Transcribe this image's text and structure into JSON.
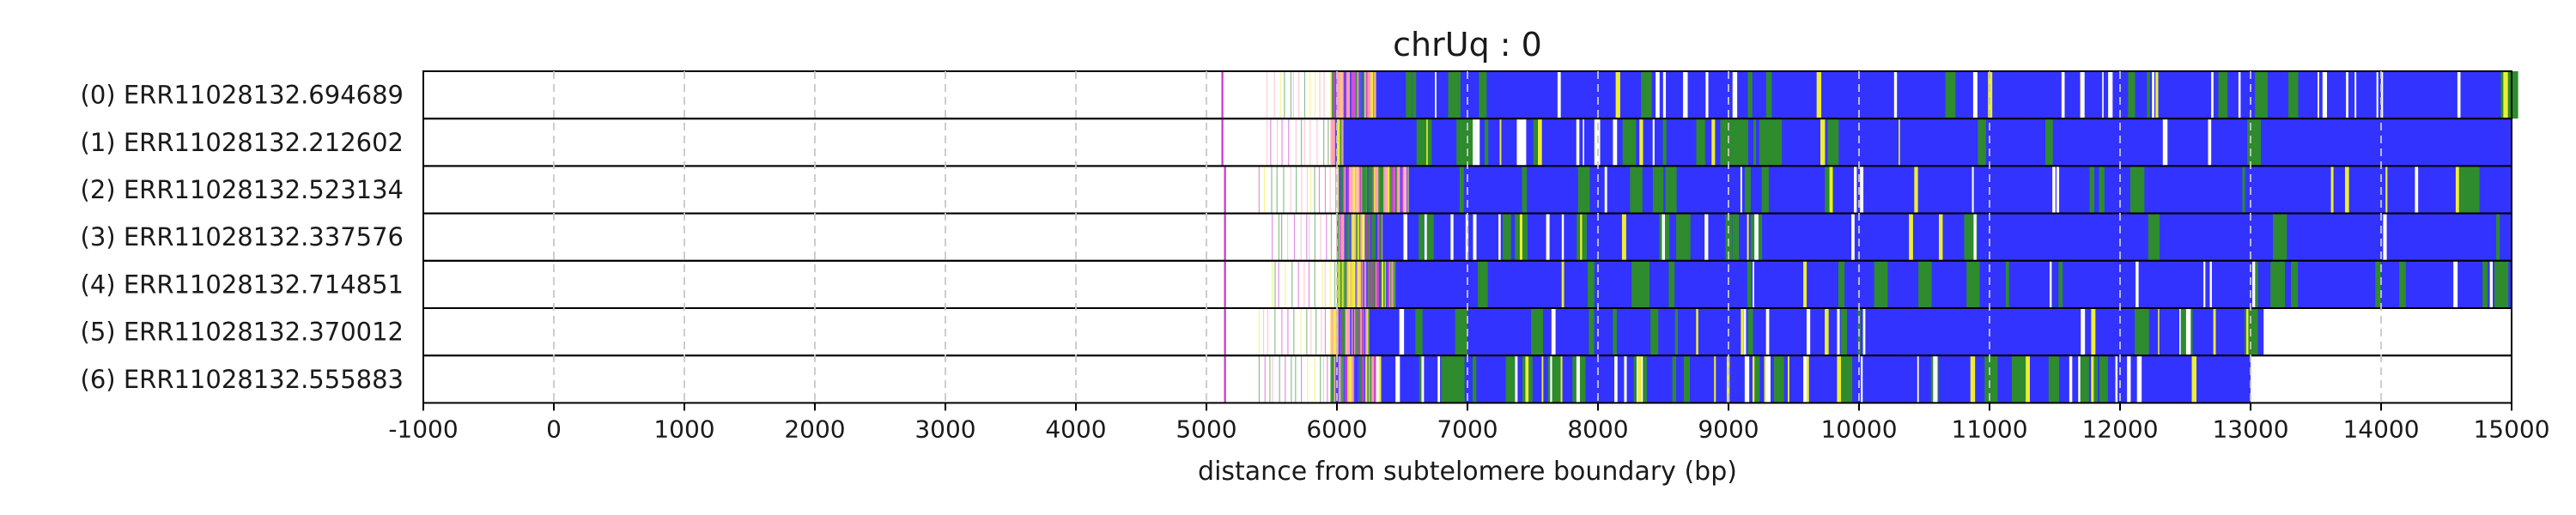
{
  "chart_data": {
    "type": "heatmap",
    "title": "chrUq : 0",
    "xlabel": "distance from subtelomere boundary (bp)",
    "ylabel": "",
    "xlim": [
      -1000,
      15000
    ],
    "xticks": [
      -1000,
      0,
      1000,
      2000,
      3000,
      4000,
      5000,
      6000,
      7000,
      8000,
      9000,
      10000,
      11000,
      12000,
      13000,
      14000,
      15000
    ],
    "xtick_labels": [
      "-1000",
      "0",
      "1000",
      "2000",
      "3000",
      "4000",
      "5000",
      "6000",
      "7000",
      "8000",
      "9000",
      "10000",
      "11000",
      "12000",
      "13000",
      "14000",
      "15000"
    ],
    "grid": "vertical dashed at ticks",
    "colors": {
      "blue": "#3333ff",
      "green": "#2e8b2e",
      "yellow": "#eeee33",
      "pink": "#ff9fb4",
      "magenta": "#cc33cc",
      "gridline": "#c8c8c8",
      "frame": "#000000"
    },
    "rows": [
      {
        "label": "(0) ERR11028132.694689",
        "marker": 5115,
        "start": 5460,
        "end": 15000,
        "dense_start": 5950,
        "blue_start": 6300,
        "solid_blue_start": 6300,
        "green_frac": 0.18,
        "yellow_frac": 0.05,
        "white_frac": 0.32
      },
      {
        "label": "(1) ERR11028132.212602",
        "marker": 5115,
        "start": 5460,
        "end": 15000,
        "dense_start": 5950,
        "blue_start": 6050,
        "solid_blue_start": 9900,
        "green_frac": 0.08,
        "yellow_frac": 0.03,
        "white_frac": 0.05
      },
      {
        "label": "(2) ERR11028132.523134",
        "marker": 5135,
        "start": 5400,
        "end": 15000,
        "dense_start": 6000,
        "blue_start": 6550,
        "solid_blue_start": 6550,
        "green_frac": 0.22,
        "yellow_frac": 0.06,
        "white_frac": 0.1
      },
      {
        "label": "(3) ERR11028132.337576",
        "marker": 5135,
        "start": 5500,
        "end": 15000,
        "dense_start": 6000,
        "blue_start": 6350,
        "solid_blue_start": 9300,
        "green_frac": 0.1,
        "yellow_frac": 0.04,
        "white_frac": 0.06
      },
      {
        "label": "(4) ERR11028132.714851",
        "marker": 5135,
        "start": 5500,
        "end": 15000,
        "dense_start": 6000,
        "blue_start": 6450,
        "solid_blue_start": 6450,
        "green_frac": 0.22,
        "yellow_frac": 0.05,
        "white_frac": 0.08
      },
      {
        "label": "(5) ERR11028132.370012",
        "marker": 5135,
        "start": 5400,
        "end": 13100,
        "dense_start": 5950,
        "blue_start": 6250,
        "solid_blue_start": 6250,
        "green_frac": 0.2,
        "yellow_frac": 0.07,
        "white_frac": 0.1
      },
      {
        "label": "(6) ERR11028132.555883",
        "marker": 5135,
        "start": 5400,
        "end": 13000,
        "dense_start": 5950,
        "blue_start": 6300,
        "solid_blue_start": 12100,
        "green_frac": 0.12,
        "yellow_frac": 0.05,
        "white_frac": 0.07
      }
    ]
  }
}
